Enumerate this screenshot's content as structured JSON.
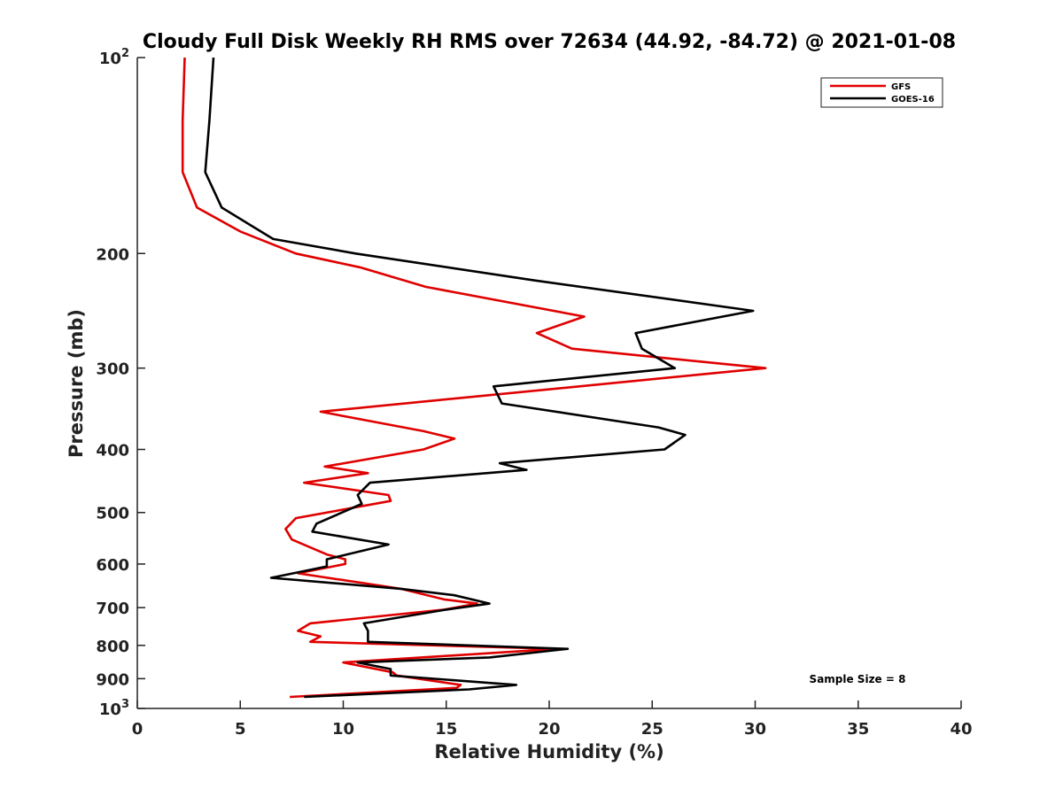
{
  "chart_data": {
    "type": "line",
    "title": "Cloudy Full Disk Weekly RH RMS over 72634 (44.92, -84.72) @ 2021-01-08",
    "xlabel": "Relative Humidity (%)",
    "ylabel": "Pressure (mb)",
    "xlim": [
      0,
      40
    ],
    "ylim": [
      100,
      1000
    ],
    "y_scale": "log",
    "y_reversed": false,
    "grid": false,
    "legend_position": "top-right",
    "x_ticks": [
      "0",
      "5",
      "10",
      "15",
      "20",
      "25",
      "30",
      "35",
      "40"
    ],
    "y_ticks": [
      {
        "value": 100,
        "base": "10",
        "exp": "2"
      },
      {
        "value": 200,
        "label": "200"
      },
      {
        "value": 300,
        "label": "300"
      },
      {
        "value": 400,
        "label": "400"
      },
      {
        "value": 500,
        "label": "500"
      },
      {
        "value": 600,
        "label": "600"
      },
      {
        "value": 700,
        "label": "700"
      },
      {
        "value": 800,
        "label": "800"
      },
      {
        "value": 900,
        "label": "900"
      },
      {
        "value": 1000,
        "base": "10",
        "exp": "3"
      }
    ],
    "series": [
      {
        "name": "GFS",
        "color": "#e00000",
        "points": [
          [
            2.3,
            100
          ],
          [
            2.2,
            125
          ],
          [
            2.2,
            150
          ],
          [
            2.9,
            170
          ],
          [
            5.0,
            185
          ],
          [
            7.7,
            200
          ],
          [
            10.8,
            210
          ],
          [
            14.0,
            225
          ],
          [
            21.7,
            250
          ],
          [
            19.4,
            265
          ],
          [
            21.1,
            280
          ],
          [
            30.5,
            300
          ],
          [
            8.9,
            350
          ],
          [
            13.9,
            375
          ],
          [
            15.4,
            385
          ],
          [
            13.9,
            400
          ],
          [
            9.1,
            425
          ],
          [
            11.2,
            435
          ],
          [
            8.1,
            450
          ],
          [
            12.2,
            470
          ],
          [
            12.3,
            480
          ],
          [
            7.7,
            510
          ],
          [
            7.2,
            530
          ],
          [
            7.5,
            550
          ],
          [
            9.2,
            580
          ],
          [
            10.1,
            590
          ],
          [
            10.1,
            600
          ],
          [
            7.8,
            620
          ],
          [
            12.8,
            655
          ],
          [
            14.9,
            680
          ],
          [
            16.5,
            690
          ],
          [
            14.9,
            705
          ],
          [
            8.4,
            740
          ],
          [
            7.8,
            760
          ],
          [
            8.9,
            775
          ],
          [
            8.4,
            790
          ],
          [
            20.4,
            810
          ],
          [
            10.0,
            850
          ],
          [
            12.4,
            880
          ],
          [
            12.6,
            890
          ],
          [
            15.7,
            920
          ],
          [
            15.5,
            930
          ],
          [
            7.4,
            960
          ]
        ]
      },
      {
        "name": "GOES-16",
        "color": "#000000",
        "points": [
          [
            3.7,
            100
          ],
          [
            3.5,
            125
          ],
          [
            3.3,
            150
          ],
          [
            4.1,
            170
          ],
          [
            6.6,
            190
          ],
          [
            10.6,
            200
          ],
          [
            19.3,
            220
          ],
          [
            29.9,
            245
          ],
          [
            24.2,
            265
          ],
          [
            24.5,
            280
          ],
          [
            26.1,
            300
          ],
          [
            17.3,
            320
          ],
          [
            17.7,
            340
          ],
          [
            25.3,
            370
          ],
          [
            26.6,
            380
          ],
          [
            25.6,
            400
          ],
          [
            17.6,
            420
          ],
          [
            18.9,
            430
          ],
          [
            11.3,
            450
          ],
          [
            10.7,
            470
          ],
          [
            10.9,
            485
          ],
          [
            8.7,
            520
          ],
          [
            8.5,
            535
          ],
          [
            12.2,
            560
          ],
          [
            9.2,
            590
          ],
          [
            9.2,
            605
          ],
          [
            6.5,
            630
          ],
          [
            12.8,
            655
          ],
          [
            15.4,
            670
          ],
          [
            17.1,
            690
          ],
          [
            15.0,
            705
          ],
          [
            11.0,
            740
          ],
          [
            11.2,
            760
          ],
          [
            11.2,
            790
          ],
          [
            20.9,
            810
          ],
          [
            17.1,
            835
          ],
          [
            10.7,
            850
          ],
          [
            12.3,
            870
          ],
          [
            12.3,
            890
          ],
          [
            18.4,
            920
          ],
          [
            16.1,
            935
          ],
          [
            8.1,
            960
          ]
        ]
      }
    ],
    "annotations": [
      {
        "text": "Sample Size = 8",
        "x": 35.5,
        "y": 900
      }
    ]
  }
}
